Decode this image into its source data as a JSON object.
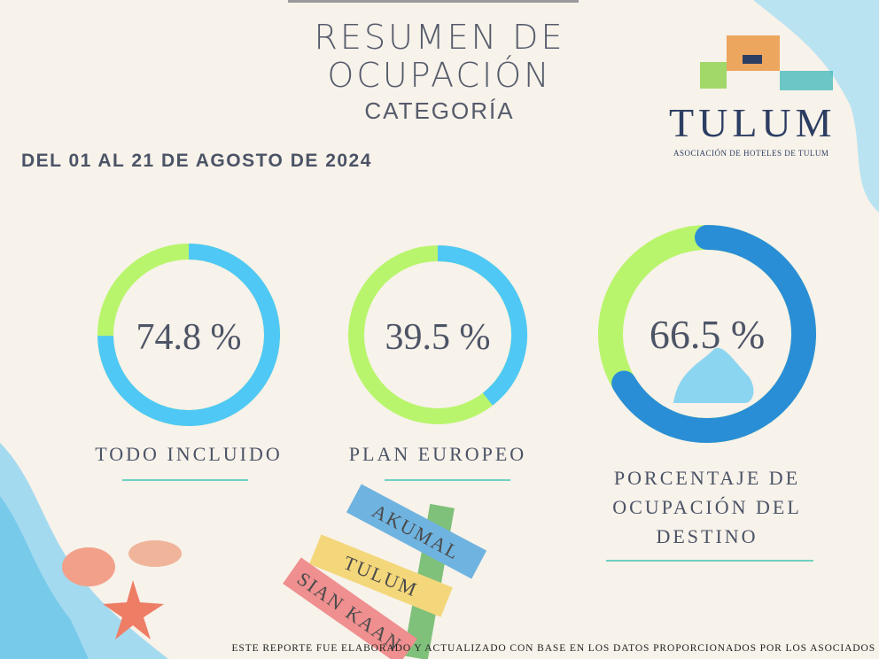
{
  "header": {
    "title_line1": "RESUMEN DE",
    "title_line2": "OCUPACIÓN",
    "subtitle": "CATEGORÍA",
    "date_range": "DEL 01 AL 21 DE AGOSTO DE 2024"
  },
  "logo": {
    "name": "TULUM",
    "tagline": "ASOCIACIÓN DE HOTELES DE TULUM"
  },
  "chart_data": [
    {
      "type": "pie",
      "title": "TODO INCLUIDO",
      "values": [
        74.8
      ],
      "value_labels": [
        "74.8 %"
      ],
      "color": "#4fc8f5",
      "track_color": "#b9f56c"
    },
    {
      "type": "pie",
      "title": "PLAN EUROPEO",
      "values": [
        39.5
      ],
      "value_labels": [
        "39.5 %"
      ],
      "color": "#4fc8f5",
      "track_color": "#b9f56c"
    },
    {
      "type": "pie",
      "title": "PORCENTAJE DE OCUPACIÓN DEL DESTINO",
      "values": [
        66.5
      ],
      "value_labels": [
        "66.5 %"
      ],
      "color": "#2a8ed6",
      "track_color": "#b9f56c"
    }
  ],
  "signs": [
    "AKUMAL",
    "TULUM",
    "SIAN KAAN"
  ],
  "footer": "ESTE REPORTE FUE ELABORADO Y ACTUALIZADO CON BASE EN LOS DATOS PROPORCIONADOS POR LOS ASOCIADOS"
}
